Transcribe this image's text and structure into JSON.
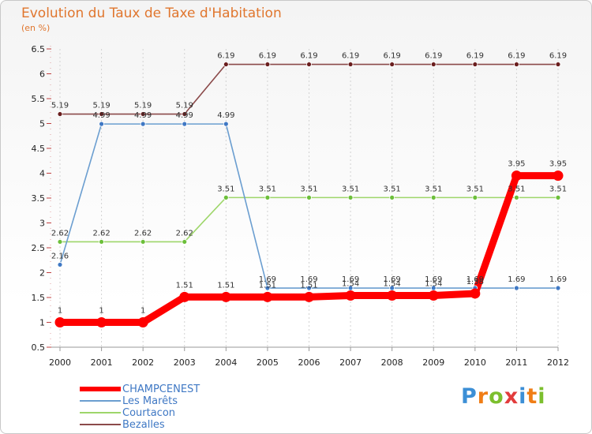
{
  "header": {
    "title": "Evolution du Taux de Taxe d'Habitation",
    "unit": "(en %)"
  },
  "logo": {
    "letters": [
      "P",
      "r",
      "o",
      "x",
      "i",
      "t",
      "i"
    ],
    "colors": [
      "#3c8fd6",
      "#f07d16",
      "#7cbf2e",
      "#e23c3c",
      "#3c8fd6",
      "#f07d16",
      "#7cbf2e"
    ]
  },
  "chart_data": {
    "type": "line",
    "title": "Evolution du Taux de Taxe d'Habitation",
    "ylabel": "(en %)",
    "xlabel": "",
    "x": [
      "2000",
      "2001",
      "2002",
      "2003",
      "2004",
      "2005",
      "2006",
      "2007",
      "2008",
      "2009",
      "2010",
      "2011",
      "2012"
    ],
    "ylim": [
      0.5,
      6.5
    ],
    "yticks": [
      "0.5",
      "1",
      "1.5",
      "2",
      "2.5",
      "3",
      "3.5",
      "4",
      "4.5",
      "5",
      "5.5",
      "6",
      "6.5"
    ],
    "legend_position": "bottom-left",
    "series": [
      {
        "name": "CHAMPCENEST",
        "color": "#ff0000",
        "marker_color": "#ff0000",
        "emphasis": true,
        "values": [
          1,
          1,
          1,
          1.51,
          1.51,
          1.51,
          1.51,
          1.54,
          1.54,
          1.54,
          1.58,
          3.95,
          3.95
        ],
        "labels": [
          "1",
          "1",
          "1",
          "1.51",
          "1.51",
          "1.51",
          "1.51",
          "1.54",
          "1.54",
          "1.54",
          "1.58",
          "3.95",
          "3.95"
        ]
      },
      {
        "name": "Les Marêts",
        "color": "#6b9ed0",
        "marker_color": "#3f78c4",
        "emphasis": false,
        "values": [
          2.16,
          4.99,
          4.99,
          4.99,
          4.99,
          1.69,
          1.69,
          1.69,
          1.69,
          1.69,
          1.69,
          1.69,
          1.69
        ],
        "labels": [
          "2.16",
          "4.99",
          "4.99",
          "4.99",
          "4.99",
          "1.69",
          "1.69",
          "1.69",
          "1.69",
          "1.69",
          "1.69",
          "1.69",
          "1.69"
        ]
      },
      {
        "name": "Courtacon",
        "color": "#9ed66a",
        "marker_color": "#6cbf3a",
        "emphasis": false,
        "values": [
          2.62,
          2.62,
          2.62,
          2.62,
          3.51,
          3.51,
          3.51,
          3.51,
          3.51,
          3.51,
          3.51,
          3.51,
          3.51
        ],
        "labels": [
          "2.62",
          "2.62",
          "2.62",
          "2.62",
          "3.51",
          "3.51",
          "3.51",
          "3.51",
          "3.51",
          "3.51",
          "3.51",
          "3.51",
          "3.51"
        ]
      },
      {
        "name": "Bezalles",
        "color": "#8b4a4a",
        "marker_color": "#6a1e1e",
        "emphasis": false,
        "values": [
          5.19,
          5.19,
          5.19,
          5.19,
          6.19,
          6.19,
          6.19,
          6.19,
          6.19,
          6.19,
          6.19,
          6.19,
          6.19
        ],
        "labels": [
          "5.19",
          "5.19",
          "5.19",
          "5.19",
          "6.19",
          "6.19",
          "6.19",
          "6.19",
          "6.19",
          "6.19",
          "6.19",
          "6.19",
          "6.19"
        ]
      }
    ]
  }
}
